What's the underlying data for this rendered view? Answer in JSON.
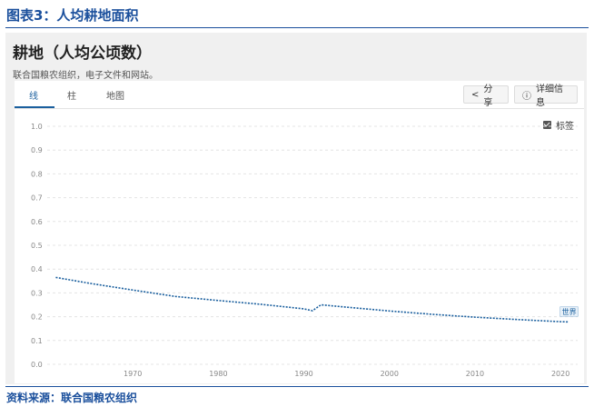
{
  "figure": {
    "title": "图表3：人均耕地面积",
    "source": "资料来源：联合国粮农组织"
  },
  "panel": {
    "title": "耕地（人均公顷数）",
    "subtitle": "联合国粮农组织，电子文件和网站。"
  },
  "tabs": [
    {
      "label": "线",
      "active": true
    },
    {
      "label": "柱",
      "active": false
    },
    {
      "label": "地图",
      "active": false
    }
  ],
  "buttons": {
    "share": {
      "label": "分享",
      "icon": "share-icon"
    },
    "details": {
      "label": "详细信息",
      "icon": "info-icon"
    }
  },
  "label_toggle": {
    "label": "标签",
    "checked": true
  },
  "colors": {
    "accent": "#1a4f9c",
    "series": "#1a5f9e",
    "grid": "#e4e4e4"
  },
  "chart_data": {
    "type": "line",
    "title": "",
    "xlabel": "",
    "ylabel": "",
    "xlim": [
      1960,
      2022
    ],
    "ylim": [
      0,
      1.0
    ],
    "yticks": [
      0,
      0.1,
      0.2,
      0.3,
      0.4,
      0.5,
      0.6,
      0.7,
      0.8,
      0.9,
      1.0
    ],
    "ytick_labels": [
      "0.0",
      "0.1",
      "0.2",
      "0.3",
      "0.4",
      "0.5",
      "0.6",
      "0.7",
      "0.8",
      "0.9",
      "1.0"
    ],
    "xticks": [
      1970,
      1980,
      1990,
      2000,
      2010,
      2020
    ],
    "xtick_labels": [
      "1970",
      "1980",
      "1990",
      "2000",
      "2010",
      "2020"
    ],
    "grid": true,
    "series": [
      {
        "name": "世界",
        "x": [
          1961,
          1965,
          1970,
          1975,
          1980,
          1985,
          1990,
          1991,
          1992,
          1995,
          2000,
          2005,
          2010,
          2015,
          2020,
          2021
        ],
        "values": [
          0.365,
          0.34,
          0.312,
          0.285,
          0.268,
          0.252,
          0.233,
          0.225,
          0.25,
          0.24,
          0.224,
          0.21,
          0.198,
          0.188,
          0.179,
          0.178
        ]
      }
    ]
  }
}
